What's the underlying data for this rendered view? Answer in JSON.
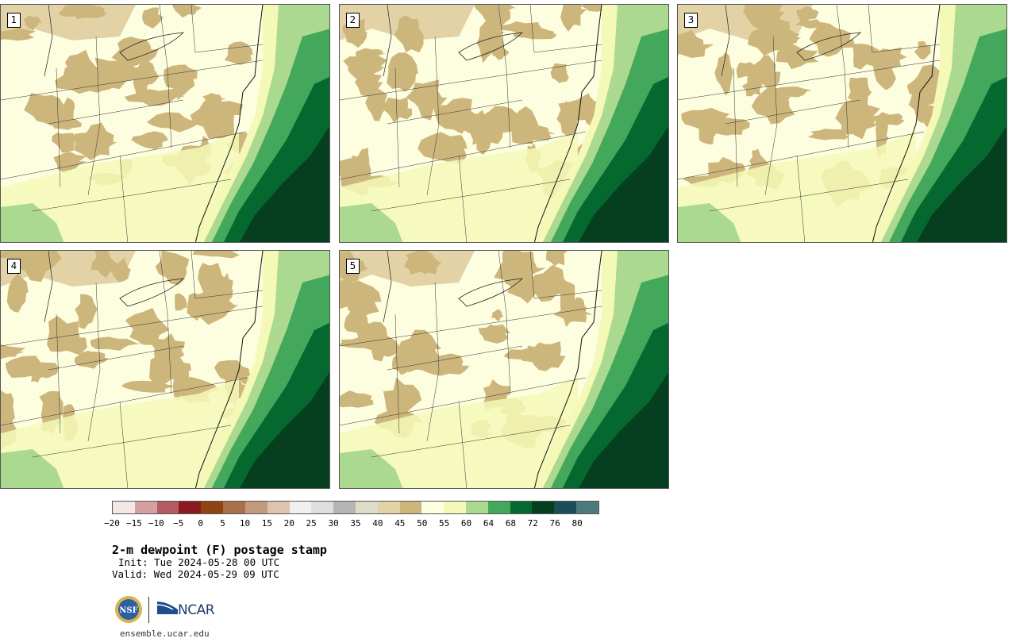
{
  "panels": [
    {
      "label": "1"
    },
    {
      "label": "2"
    },
    {
      "label": "3"
    },
    {
      "label": "4"
    },
    {
      "label": "5"
    }
  ],
  "colorbar": {
    "colors": [
      "#f5e6e6",
      "#d4a0a3",
      "#b35c62",
      "#8b1a20",
      "#8c4513",
      "#a7704a",
      "#c49a7d",
      "#dfc3b1",
      "#f0f0f0",
      "#dedede",
      "#b4b4b4",
      "#dcdcc8",
      "#e2d2a6",
      "#cdb67c",
      "#fdfde0",
      "#f4f9b7",
      "#abd98f",
      "#43a85c",
      "#05692f",
      "#053f20",
      "#1b4e56",
      "#4c7b7d"
    ],
    "tick_labels": [
      "−20",
      "−15",
      "−10",
      "−5",
      "0",
      "5",
      "10",
      "15",
      "20",
      "25",
      "30",
      "35",
      "40",
      "45",
      "50",
      "55",
      "60",
      "64",
      "68",
      "72",
      "76",
      "80"
    ]
  },
  "title": "2-m dewpoint (F) postage stamp",
  "init": "Init: Tue 2024-05-28 00 UTC",
  "valid": "Valid: Wed 2024-05-29 09 UTC",
  "logos": {
    "ncar": "NCAR",
    "nsf": "NSF"
  },
  "url": "ensemble.ucar.edu"
}
